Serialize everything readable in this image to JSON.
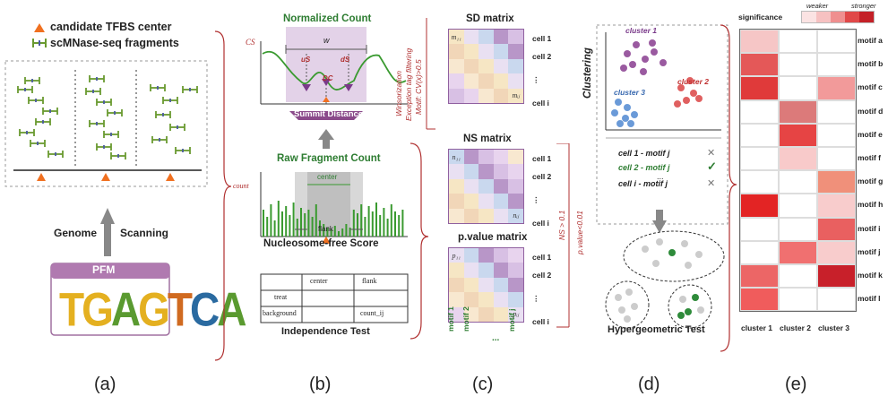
{
  "panel_a": {
    "legend_tfbs": "candidate TFBS center",
    "legend_frag": "scMNase-seq fragments",
    "scan_left": "Genome",
    "scan_right": "Scanning",
    "pfm_title": "PFM",
    "pfm_logo": "TGAGTCA"
  },
  "panel_b": {
    "normalized_title": "Normalized Count",
    "cs_label": "CS",
    "w_label": "w",
    "us_label": "uS",
    "ds_label": "dS",
    "dc_label": "DC",
    "summit_label": "Summit Distance",
    "raw_title": "Raw Fragment Count",
    "count_label": "count",
    "center_label": "center",
    "flank_label": "flank",
    "nfs_title": "Nucleosome-free Score",
    "table_headers": [
      "",
      "center",
      "flank"
    ],
    "table_rows": [
      [
        "treat",
        "",
        ""
      ],
      [
        "background",
        "",
        "count_ij"
      ]
    ],
    "independence_title": "Independence Test",
    "side_note_1": "Winsorization",
    "side_note_2": "Exception tag filtering",
    "side_note_3": "Motif: CV(x)>0.5"
  },
  "panel_c": {
    "sd_title": "SD matrix",
    "ns_title": "NS matrix",
    "pv_title": "p.value matrix",
    "cells": [
      "cell 1",
      "cell 2",
      "⋮",
      "cell i"
    ],
    "motifs": [
      "motif 1",
      "motif 2",
      "...",
      "motif j"
    ],
    "threshold_note": "NS > 0.1",
    "pvalue_note": "p.value<0.01"
  },
  "panel_d": {
    "clustering_label": "Clustering",
    "cluster1": "cluster 1",
    "cluster2": "cluster 2",
    "cluster3": "cluster 3",
    "assoc": [
      "cell 1 - motif j",
      "cell 2 - motif j",
      "...",
      "cell i - motif j"
    ],
    "hyper_title": "Hypergeometric Test"
  },
  "panel_e": {
    "significance_label": "significance",
    "weaker": "weaker",
    "stronger": "stronger",
    "scale_colors": [
      "#fbe3e3",
      "#f6c1c1",
      "#ef8f8f",
      "#e04848",
      "#c42027"
    ],
    "motifs": [
      "motif a",
      "motif b",
      "motif c",
      "motif d",
      "motif e",
      "motif f",
      "motif g",
      "motif h",
      "motif i",
      "motif j",
      "motif k",
      "motif l"
    ],
    "clusters": [
      "cluster 1",
      "cluster 2",
      "cluster 3"
    ],
    "heat_colors": [
      [
        "#f6c6c6",
        "#ffffff",
        "#ffffff"
      ],
      [
        "#e45858",
        "#ffffff",
        "#ffffff"
      ],
      [
        "#e03a3a",
        "#ffffff",
        "#f29a9a"
      ],
      [
        "#ffffff",
        "#dc7a7a",
        "#ffffff"
      ],
      [
        "#ffffff",
        "#e64444",
        "#ffffff"
      ],
      [
        "#ffffff",
        "#f8caca",
        "#ffffff"
      ],
      [
        "#ffffff",
        "#ffffff",
        "#f0907a"
      ],
      [
        "#e32424",
        "#ffffff",
        "#f8cccc"
      ],
      [
        "#ffffff",
        "#ffffff",
        "#e96060"
      ],
      [
        "#ffffff",
        "#f07070",
        "#f8cccc"
      ],
      [
        "#ec6666",
        "#ffffff",
        "#c8202a"
      ],
      [
        "#f05c5c",
        "#ffffff",
        "#ffffff"
      ]
    ]
  },
  "labels": [
    "(a)",
    "(b)",
    "(c)",
    "(d)",
    "(e)"
  ]
}
